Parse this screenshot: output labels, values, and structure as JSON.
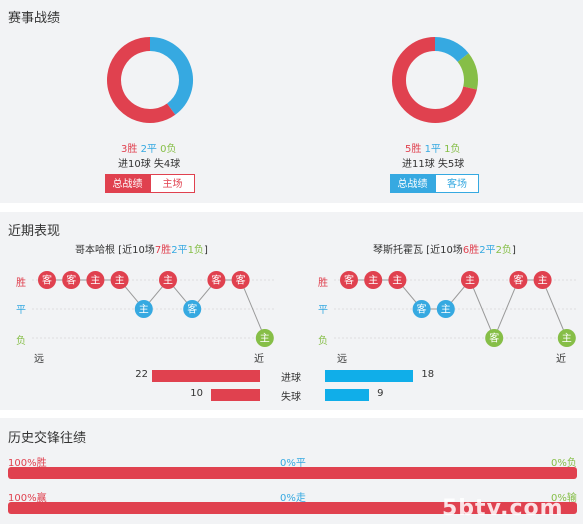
{
  "colors": {
    "win": "#e0414f",
    "draw": "#36a9e1",
    "loss": "#86be47",
    "goals_bar": "#e0414f",
    "conc_bar": "#e0414f",
    "opp_bar": "#10aee9",
    "track": "#d8d8d8"
  },
  "record": {
    "title": "赛事战绩",
    "left": {
      "win": "3胜",
      "draw": "2平",
      "loss": "0负",
      "goals": "进10球 失4球",
      "donut": {
        "win": 3,
        "draw": 2,
        "loss": 0
      },
      "tab_active": "总战绩",
      "tab_other": "主场"
    },
    "right": {
      "win": "5胜",
      "draw": "1平",
      "loss": "1负",
      "goals": "进11球 失5球",
      "donut": {
        "win": 5,
        "draw": 1,
        "loss": 1
      },
      "tab_active": "总战绩",
      "tab_other": "客场"
    }
  },
  "recent": {
    "title": "近期表现",
    "left": {
      "team": "哥本哈根",
      "pre": " [近10场",
      "w": "7胜",
      "d": "2平",
      "l": "1负",
      "post": "]",
      "games": [
        {
          "r": "W",
          "v": "客"
        },
        {
          "r": "W",
          "v": "客"
        },
        {
          "r": "W",
          "v": "主"
        },
        {
          "r": "W",
          "v": "主"
        },
        {
          "r": "D",
          "v": "主"
        },
        {
          "r": "W",
          "v": "主"
        },
        {
          "r": "D",
          "v": "客"
        },
        {
          "r": "W",
          "v": "客"
        },
        {
          "r": "W",
          "v": "客"
        },
        {
          "r": "L",
          "v": "主"
        }
      ]
    },
    "right": {
      "team": "琴斯托霍瓦",
      "pre": " [近10场",
      "w": "6胜",
      "d": "2平",
      "l": "2负",
      "post": "]",
      "games": [
        {
          "r": "W",
          "v": "客"
        },
        {
          "r": "W",
          "v": "主"
        },
        {
          "r": "W",
          "v": "主"
        },
        {
          "r": "D",
          "v": "客"
        },
        {
          "r": "D",
          "v": "主"
        },
        {
          "r": "W",
          "v": "主"
        },
        {
          "r": "L",
          "v": "客"
        },
        {
          "r": "W",
          "v": "客"
        },
        {
          "r": "W",
          "v": "主"
        },
        {
          "r": "L",
          "v": "主"
        }
      ]
    },
    "ylabels": {
      "win": "胜",
      "draw": "平",
      "loss": "负"
    },
    "far": "远",
    "near": "近",
    "stats": [
      {
        "label": "进球",
        "left": 22,
        "right": 18
      },
      {
        "label": "失球",
        "left": 10,
        "right": 9
      }
    ],
    "stats_max": 22
  },
  "h2h": {
    "title": "历史交锋往绩",
    "row1": {
      "a": "100%胜",
      "b": "0%平",
      "c": "0%负",
      "fill": 1.0
    },
    "row2": {
      "a": "100%赢",
      "b": "0%走",
      "c": "0%输",
      "fill": 1.0
    },
    "watermark": "5btv.com"
  }
}
